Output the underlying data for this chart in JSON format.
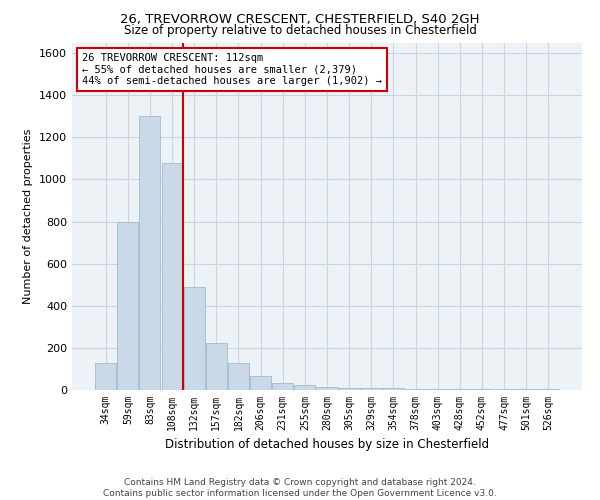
{
  "title1": "26, TREVORROW CRESCENT, CHESTERFIELD, S40 2GH",
  "title2": "Size of property relative to detached houses in Chesterfield",
  "xlabel": "Distribution of detached houses by size in Chesterfield",
  "ylabel": "Number of detached properties",
  "categories": [
    "34sqm",
    "59sqm",
    "83sqm",
    "108sqm",
    "132sqm",
    "157sqm",
    "182sqm",
    "206sqm",
    "231sqm",
    "255sqm",
    "280sqm",
    "305sqm",
    "329sqm",
    "354sqm",
    "378sqm",
    "403sqm",
    "428sqm",
    "452sqm",
    "477sqm",
    "501sqm",
    "526sqm"
  ],
  "values": [
    130,
    800,
    1300,
    1080,
    490,
    225,
    130,
    65,
    35,
    25,
    15,
    10,
    10,
    10,
    5,
    5,
    5,
    5,
    5,
    5,
    5
  ],
  "bar_color": "#c9d9e8",
  "bar_edge_color": "#a8bfcf",
  "vline_color": "#cc0000",
  "annotation_text": "26 TREVORROW CRESCENT: 112sqm\n← 55% of detached houses are smaller (2,379)\n44% of semi-detached houses are larger (1,902) →",
  "annotation_box_color": "#ffffff",
  "annotation_box_edge_color": "#cc0000",
  "ylim": [
    0,
    1650
  ],
  "yticks": [
    0,
    200,
    400,
    600,
    800,
    1000,
    1200,
    1400,
    1600
  ],
  "footer1": "Contains HM Land Registry data © Crown copyright and database right 2024.",
  "footer2": "Contains public sector information licensed under the Open Government Licence v3.0.",
  "bg_color": "#edf2f7",
  "grid_color": "#c8d4de"
}
